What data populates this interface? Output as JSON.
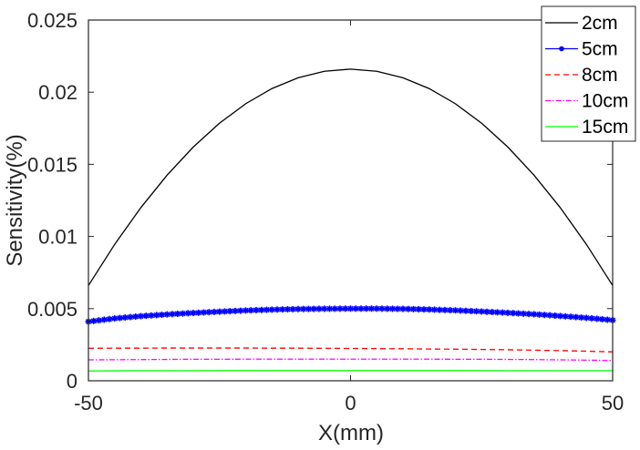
{
  "chart_data": {
    "type": "line",
    "title": "",
    "xlabel": "X(mm)",
    "ylabel": "Sensitivity(%)",
    "xlim": [
      -50,
      50
    ],
    "ylim": [
      0,
      0.025
    ],
    "xticks": [
      "-50",
      "0",
      "50"
    ],
    "xtick_values": [
      -50,
      0,
      50
    ],
    "yticks": [
      "0",
      "0.005",
      "0.01",
      "0.015",
      "0.02",
      "0.025"
    ],
    "ytick_values": [
      0,
      0.005,
      0.01,
      0.015,
      0.02,
      0.025
    ],
    "grid": false,
    "legend_position": "top-right",
    "x": [
      -50,
      -45,
      -40,
      -35,
      -30,
      -25,
      -20,
      -15,
      -10,
      -5,
      0,
      5,
      10,
      15,
      20,
      25,
      30,
      35,
      40,
      45,
      50
    ],
    "series": [
      {
        "name": "2cm",
        "color": "#000000",
        "style": "solid",
        "marker": "none",
        "values": [
          0.0066,
          0.00945,
          0.012,
          0.01425,
          0.0162,
          0.01785,
          0.0192,
          0.02025,
          0.021,
          0.02145,
          0.0216,
          0.02145,
          0.021,
          0.02025,
          0.0192,
          0.01785,
          0.0162,
          0.01425,
          0.012,
          0.00945,
          0.0066
        ]
      },
      {
        "name": "5cm",
        "color": "#0000ff",
        "style": "solid",
        "marker": "star",
        "values": [
          0.0041,
          0.00432,
          0.00448,
          0.0046,
          0.0047,
          0.00479,
          0.00487,
          0.00493,
          0.00497,
          0.00499,
          0.005,
          0.005,
          0.00498,
          0.00494,
          0.00488,
          0.0048,
          0.00471,
          0.00461,
          0.00449,
          0.00436,
          0.0042
        ]
      },
      {
        "name": "8cm",
        "color": "#ff0000",
        "style": "dashed",
        "marker": "none",
        "values": [
          0.00225,
          0.00226,
          0.00226,
          0.00227,
          0.00227,
          0.00227,
          0.00227,
          0.00226,
          0.00226,
          0.00225,
          0.00224,
          0.00223,
          0.00222,
          0.0022,
          0.00219,
          0.00217,
          0.00215,
          0.00212,
          0.00209,
          0.00205,
          0.002
        ]
      },
      {
        "name": "10cm",
        "color": "#ff00ff",
        "style": "dashdot",
        "marker": "none",
        "values": [
          0.00145,
          0.00146,
          0.00147,
          0.00148,
          0.00149,
          0.00149,
          0.0015,
          0.0015,
          0.0015,
          0.0015,
          0.0015,
          0.0015,
          0.0015,
          0.0015,
          0.00149,
          0.00149,
          0.00148,
          0.00147,
          0.00145,
          0.00143,
          0.0014
        ]
      },
      {
        "name": "15cm",
        "color": "#00ff00",
        "style": "solid",
        "marker": "none",
        "values": [
          0.00068,
          0.00069,
          0.0007,
          0.0007,
          0.0007,
          0.00071,
          0.00071,
          0.00071,
          0.00071,
          0.00071,
          0.00071,
          0.00071,
          0.00071,
          0.00071,
          0.00071,
          0.00071,
          0.0007,
          0.0007,
          0.0007,
          0.0007,
          0.0007
        ]
      }
    ]
  }
}
